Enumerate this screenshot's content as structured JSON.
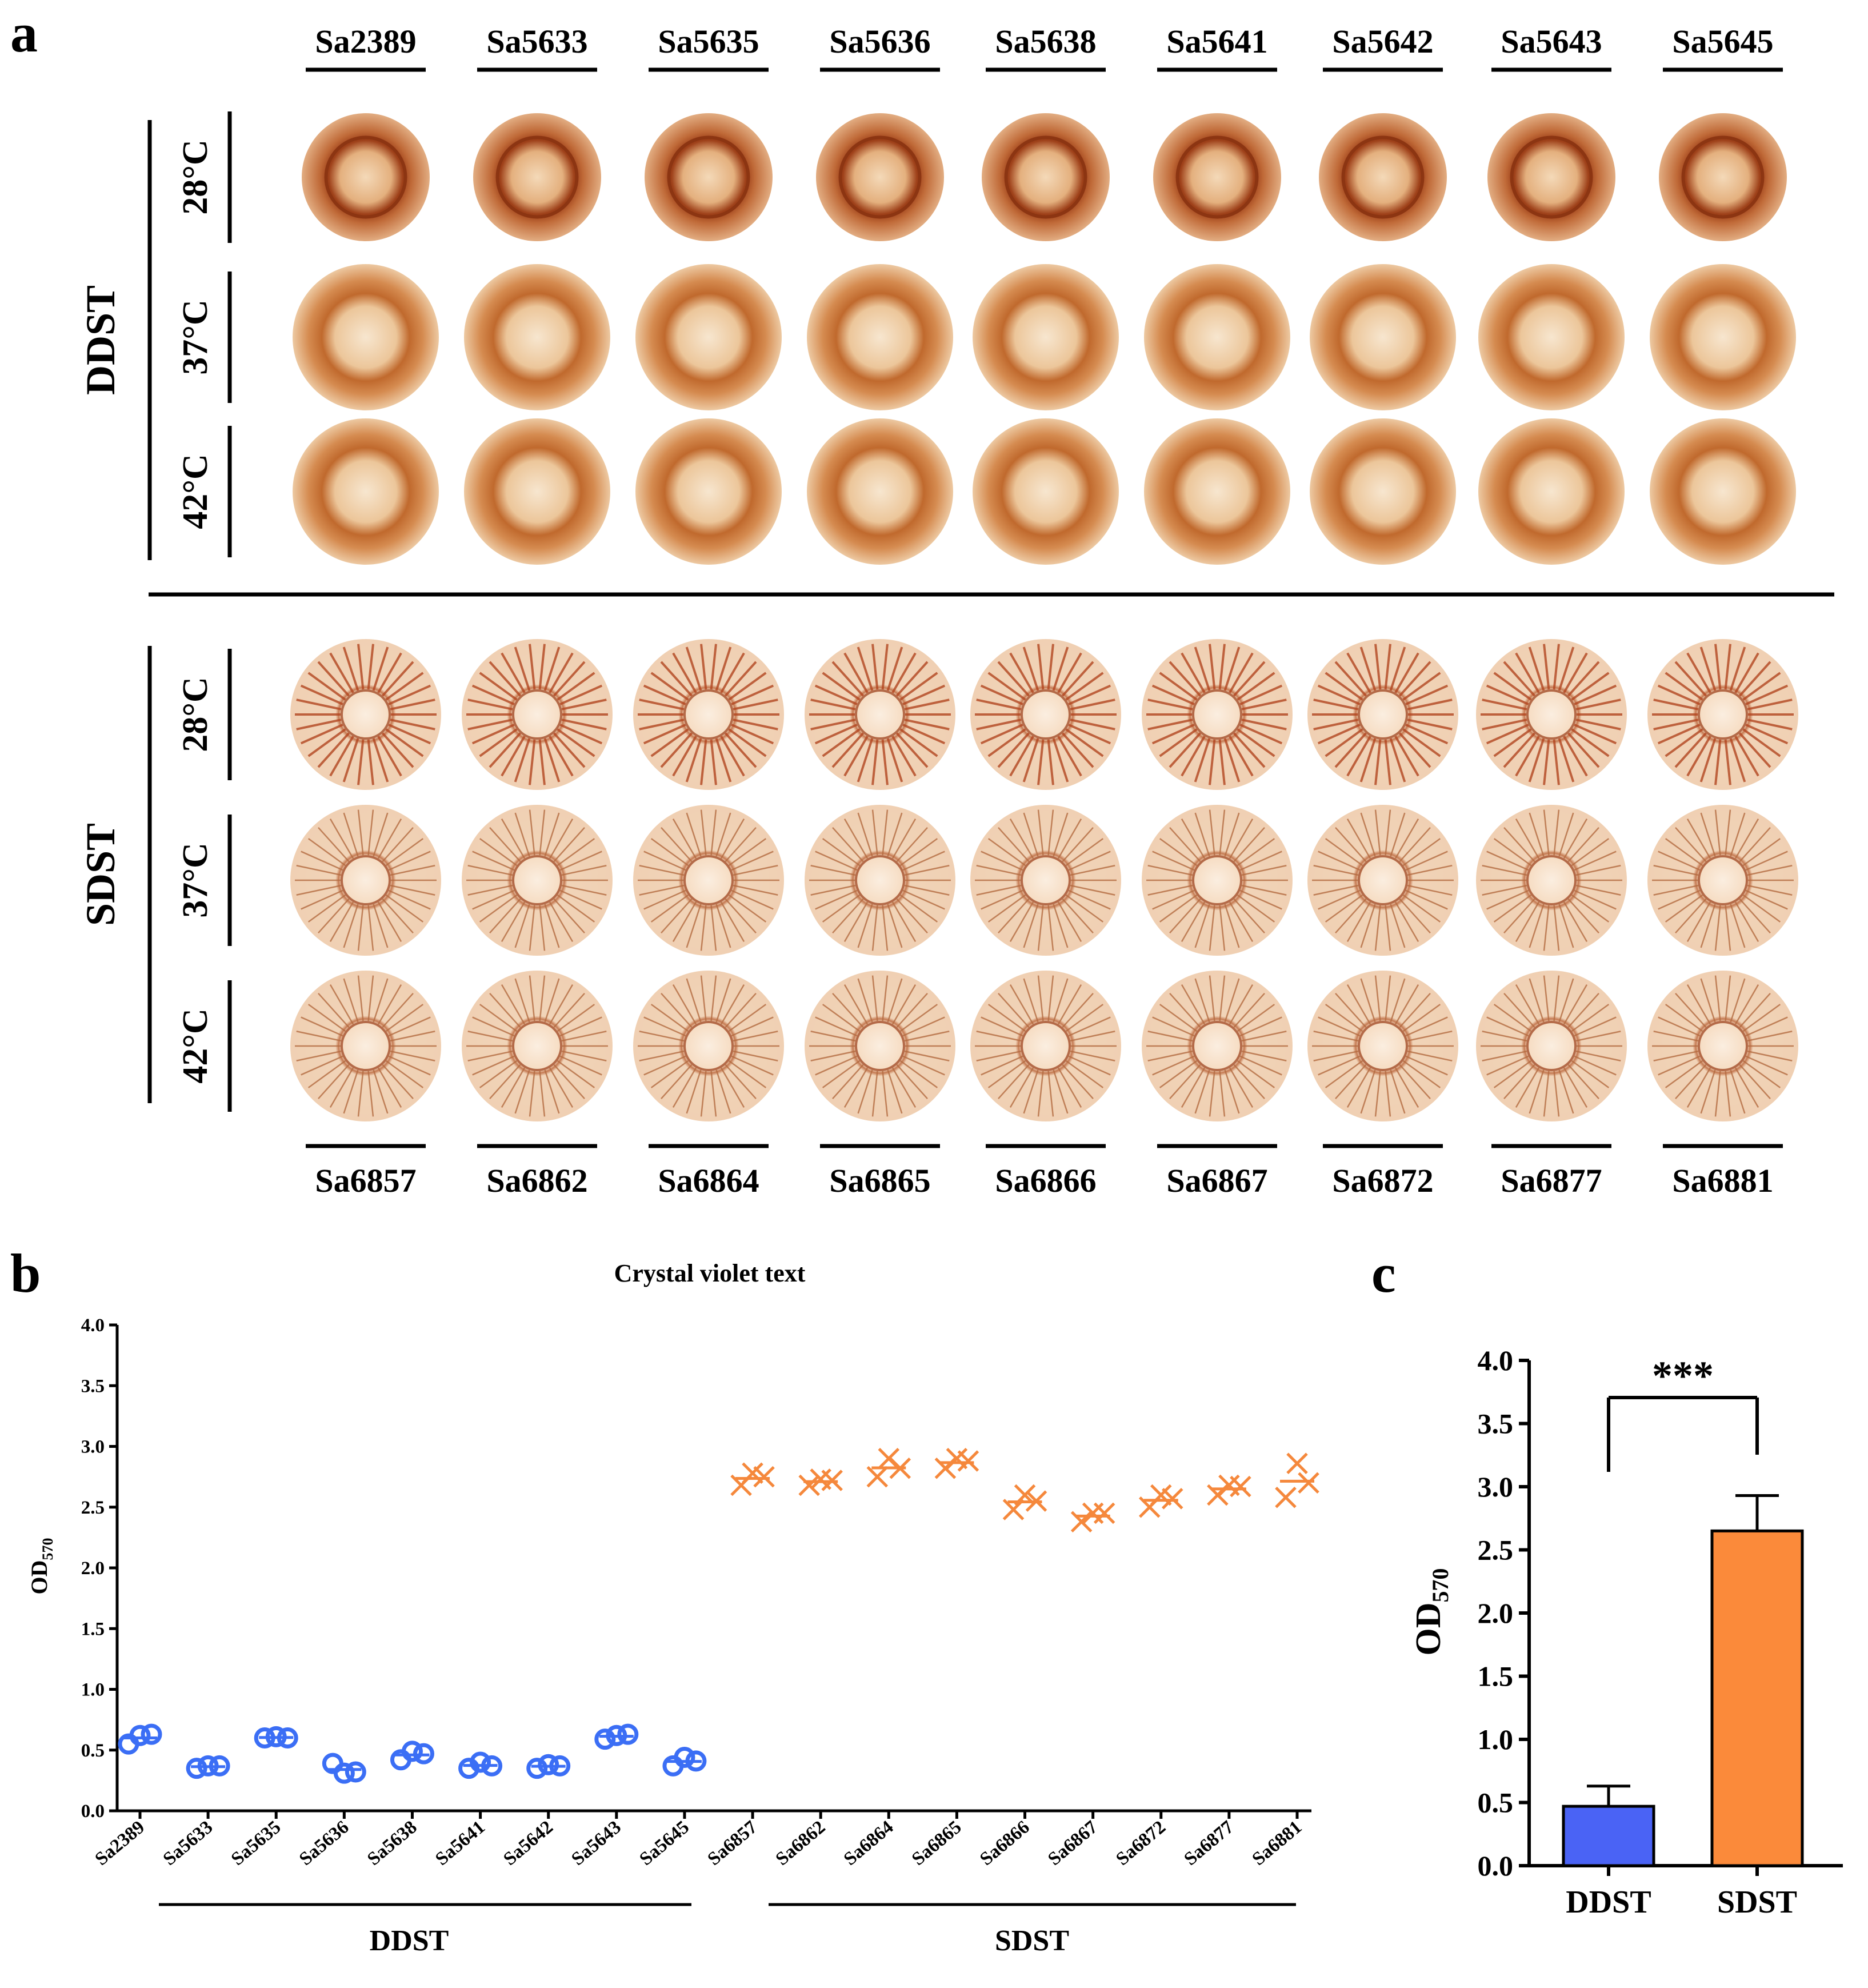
{
  "panel_a": {
    "letter": "a",
    "top_strains": [
      "Sa2389",
      "Sa5633",
      "Sa5635",
      "Sa5636",
      "Sa5638",
      "Sa5641",
      "Sa5642",
      "Sa5643",
      "Sa5645"
    ],
    "bottom_strains": [
      "Sa6857",
      "Sa6862",
      "Sa6864",
      "Sa6865",
      "Sa6866",
      "Sa6867",
      "Sa6872",
      "Sa6877",
      "Sa6881"
    ],
    "groups": [
      {
        "name": "DDST",
        "temps": [
          "28°C",
          "37°C",
          "42°C"
        ]
      },
      {
        "name": "SDST",
        "temps": [
          "28°C",
          "37°C",
          "42°C"
        ]
      }
    ],
    "colors": {
      "colony_dark": "#a0471f",
      "colony_mid": "#cd8450",
      "colony_light": "#f6e3cd",
      "background": "#ffffff"
    }
  },
  "chart_data": [
    {
      "panel": "b",
      "type": "scatter",
      "title": "Crystal violet text",
      "ylabel": "OD570",
      "ylabel_main": "OD",
      "ylabel_sub": "570",
      "ylim": [
        0,
        4.0
      ],
      "yticks": [
        "0.0",
        "0.5",
        "1.0",
        "1.5",
        "2.0",
        "2.5",
        "3.0",
        "3.5",
        "4.0"
      ],
      "categories": [
        "Sa2389",
        "Sa5633",
        "Sa5635",
        "Sa5636",
        "Sa5638",
        "Sa5641",
        "Sa5642",
        "Sa5643",
        "Sa5645",
        "Sa6857",
        "Sa6862",
        "Sa6864",
        "Sa6865",
        "Sa6866",
        "Sa6867",
        "Sa6872",
        "Sa6877",
        "Sa6881"
      ],
      "group_labels": [
        "DDST",
        "SDST"
      ],
      "series": [
        {
          "name": "DDST",
          "marker": "circle",
          "color": "#3b6ef5",
          "points": [
            [
              0.55,
              0.62,
              0.63
            ],
            [
              0.35,
              0.37,
              0.37
            ],
            [
              0.6,
              0.61,
              0.6
            ],
            [
              0.39,
              0.31,
              0.32
            ],
            [
              0.42,
              0.49,
              0.47
            ],
            [
              0.35,
              0.4,
              0.37
            ],
            [
              0.35,
              0.38,
              0.37
            ],
            [
              0.59,
              0.62,
              0.63
            ],
            [
              0.37,
              0.44,
              0.41
            ]
          ]
        },
        {
          "name": "SDST",
          "marker": "x",
          "color": "#f5883c",
          "points": [
            [
              2.68,
              2.78,
              2.75
            ],
            [
              2.68,
              2.73,
              2.72
            ],
            [
              2.75,
              2.9,
              2.82
            ],
            [
              2.82,
              2.9,
              2.88
            ],
            [
              2.48,
              2.6,
              2.55
            ],
            [
              2.38,
              2.45,
              2.45
            ],
            [
              2.5,
              2.6,
              2.57
            ],
            [
              2.6,
              2.68,
              2.67
            ],
            [
              2.58,
              2.86,
              2.7
            ]
          ]
        }
      ]
    },
    {
      "panel": "c",
      "type": "bar",
      "categories": [
        "DDST",
        "SDST"
      ],
      "values": [
        0.47,
        2.65
      ],
      "errors": [
        0.16,
        0.28
      ],
      "colors": [
        "#4a63f5",
        "#fb8a3a"
      ],
      "ylabel": "OD570",
      "ylabel_main": "OD",
      "ylabel_sub": "570",
      "ylim": [
        0,
        4.0
      ],
      "yticks": [
        "0.0",
        "0.5",
        "1.0",
        "1.5",
        "2.0",
        "2.5",
        "3.0",
        "3.5",
        "4.0"
      ],
      "significance": "***"
    }
  ],
  "panel_letters": {
    "b": "b",
    "c": "c"
  }
}
